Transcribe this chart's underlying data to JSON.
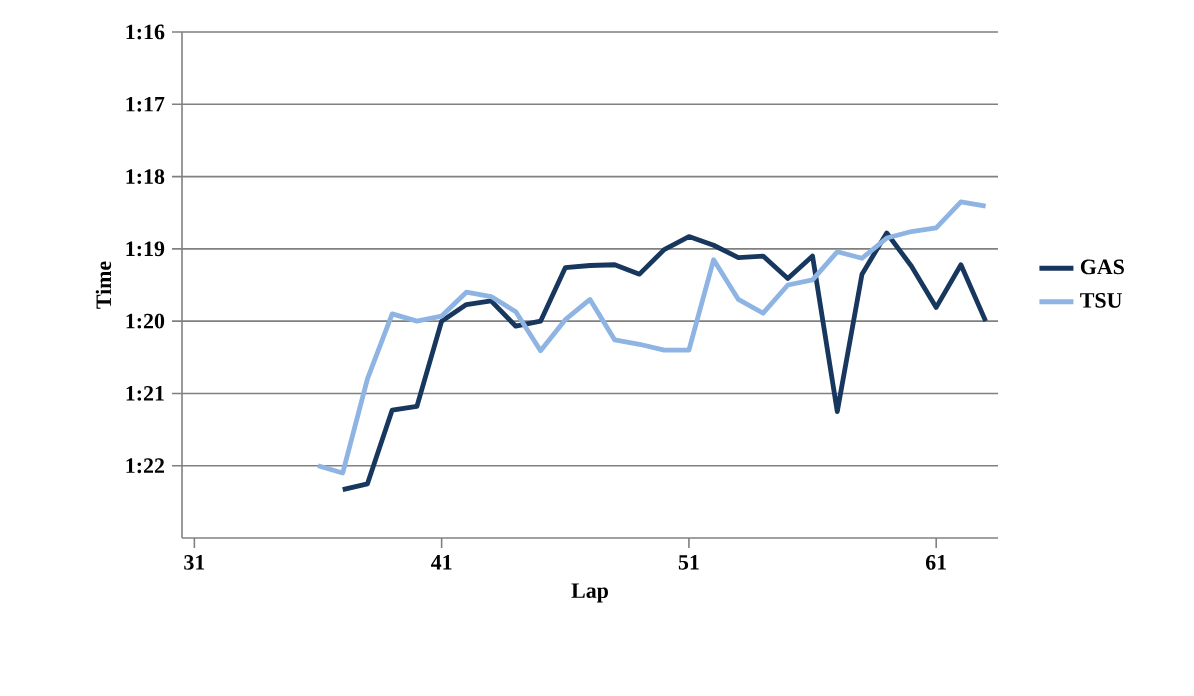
{
  "chart_data": {
    "type": "line",
    "xlabel": "Lap",
    "ylabel": "Time",
    "x": [
      36,
      37,
      38,
      39,
      40,
      41,
      42,
      43,
      44,
      45,
      46,
      47,
      48,
      49,
      50,
      51,
      52,
      53,
      54,
      55,
      56,
      57,
      58,
      59,
      60,
      61,
      62,
      63
    ],
    "series": [
      {
        "name": "GAS",
        "color": "#17375e",
        "values": [
          null,
          82.33,
          82.25,
          81.23,
          81.18,
          80.0,
          79.77,
          79.72,
          80.07,
          80.0,
          79.26,
          79.23,
          79.22,
          79.35,
          79.01,
          78.83,
          78.95,
          79.12,
          79.1,
          79.41,
          79.1,
          81.25,
          79.35,
          78.78,
          79.24,
          79.81,
          79.22,
          80.0
        ]
      },
      {
        "name": "TSU",
        "color": "#8db4e2",
        "values": [
          82.0,
          82.1,
          80.8,
          79.9,
          80.0,
          79.93,
          79.6,
          79.66,
          79.87,
          80.41,
          79.98,
          79.7,
          80.26,
          80.32,
          80.4,
          80.4,
          79.15,
          79.7,
          79.89,
          79.5,
          79.43,
          79.04,
          79.13,
          78.85,
          78.76,
          78.71,
          78.35,
          78.41
        ]
      }
    ],
    "xlim": [
      30.5,
      63.5
    ],
    "xticks": [
      31,
      41,
      51,
      61
    ],
    "ylim": [
      83,
      76
    ],
    "yticks": [
      {
        "value": 76,
        "label": "1:16"
      },
      {
        "value": 77,
        "label": "1:17"
      },
      {
        "value": 78,
        "label": "1:18"
      },
      {
        "value": 79,
        "label": "1:19"
      },
      {
        "value": 80,
        "label": "1:20"
      },
      {
        "value": 81,
        "label": "1:21"
      },
      {
        "value": 82,
        "label": "1:22"
      }
    ],
    "grid": "y",
    "legend": "right"
  }
}
